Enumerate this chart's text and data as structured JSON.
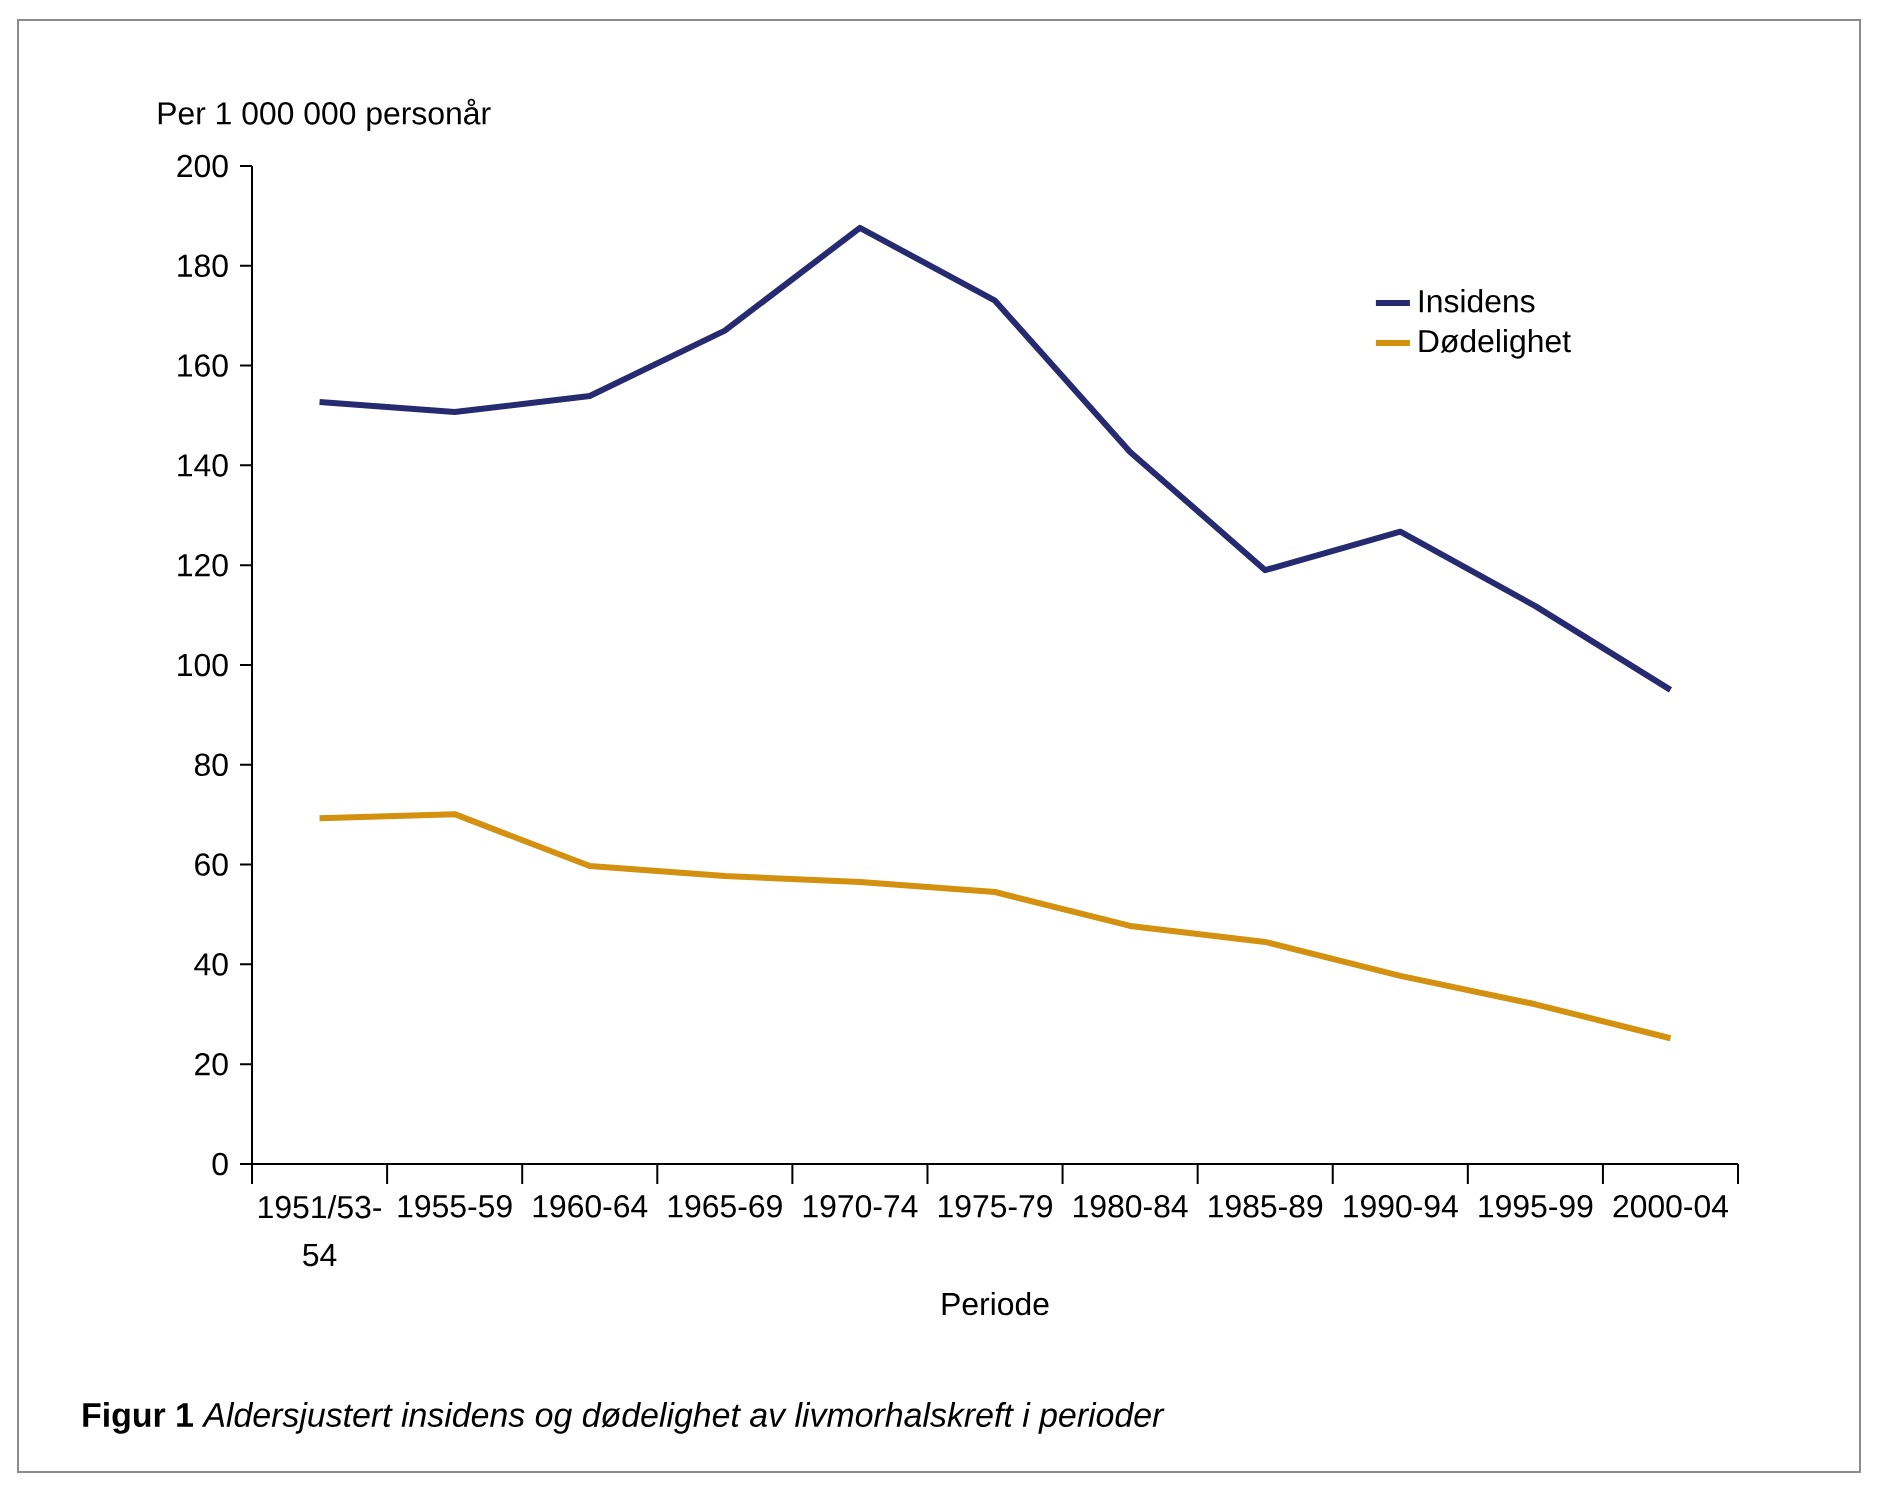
{
  "chart_data": {
    "type": "line",
    "categories": [
      "1951/53-54",
      "1955-59",
      "1960-64",
      "1965-69",
      "1970-74",
      "1975-79",
      "1980-84",
      "1985-89",
      "1990-94",
      "1995-99",
      "2000-04"
    ],
    "series": [
      {
        "name": "Insidens",
        "color": "#262a70",
        "values": [
          152.7,
          150.7,
          153.9,
          167,
          187.6,
          173,
          142.7,
          119,
          126.7,
          111.8,
          95
        ]
      },
      {
        "name": "Dødelighet",
        "color": "#d4900f",
        "values": [
          69.3,
          70.1,
          59.7,
          57.7,
          56.5,
          54.5,
          47.7,
          44.5,
          37.7,
          32,
          25.2
        ]
      }
    ],
    "ylabel": "Per 1 000 000 personår",
    "xlabel": "Periode",
    "ylim": [
      0,
      200
    ],
    "yticks": [
      0,
      20,
      40,
      60,
      80,
      100,
      120,
      140,
      160,
      180,
      200
    ],
    "legend": "top right",
    "grid": false,
    "marker": "none",
    "line_style": "solid",
    "annotations": [
      "**Figur 1** *Aldersjustert insidens og dødelighet av livmorhalskreft i perioder*"
    ]
  }
}
